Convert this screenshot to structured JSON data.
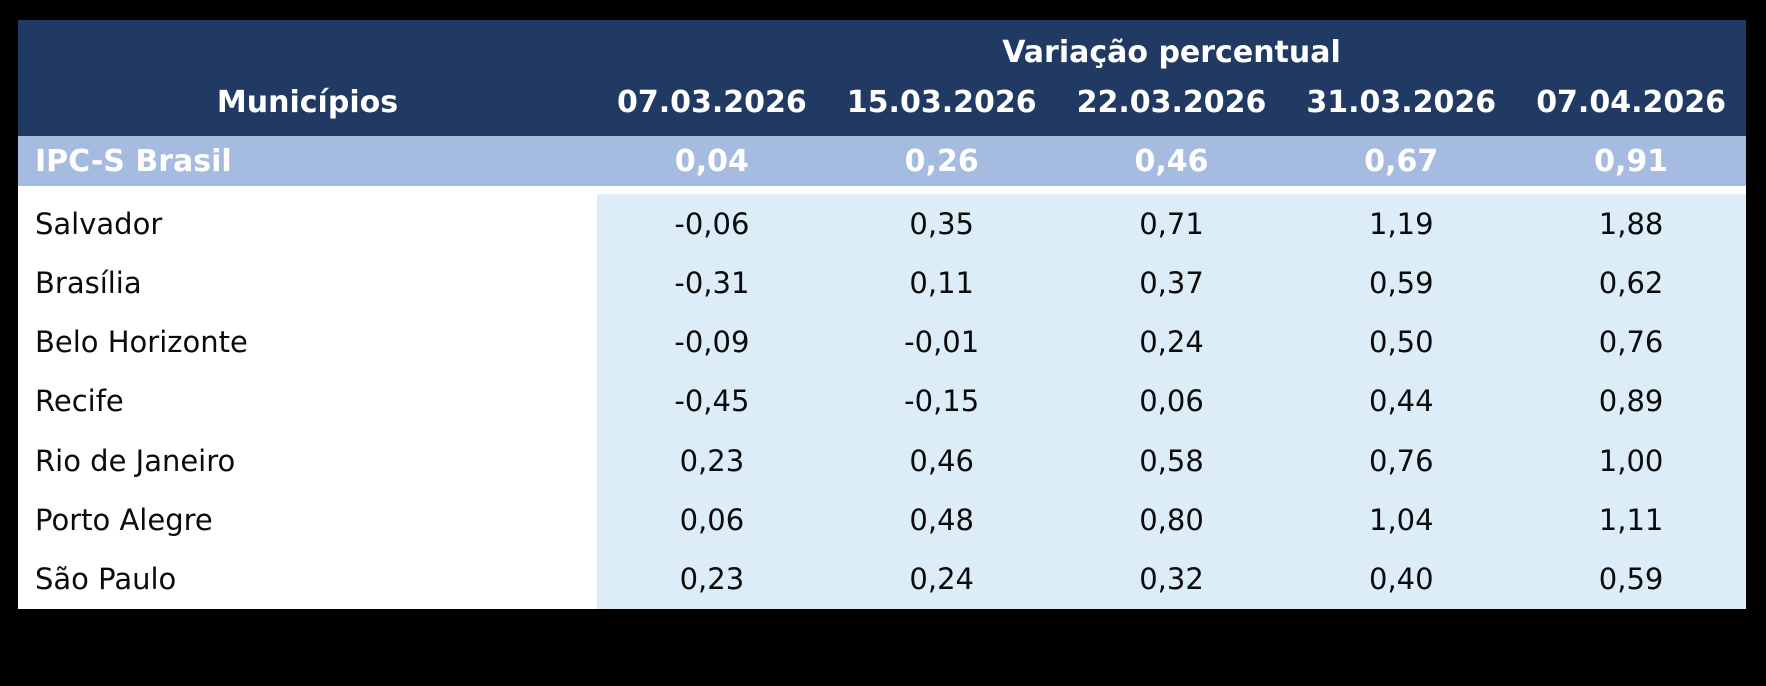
{
  "table": {
    "title": "Variação percentual",
    "columns": [
      "Municípios",
      "07.03.2026",
      "15.03.2026",
      "22.03.2026",
      "31.03.2026",
      "07.04.2026"
    ],
    "highlight_row": {
      "label": "IPC-S Brasil",
      "values": [
        "0,04",
        "0,26",
        "0,46",
        "0,67",
        "0,91"
      ]
    },
    "rows": [
      {
        "label": "Salvador",
        "values": [
          "-0,06",
          "0,35",
          "0,71",
          "1,19",
          "1,88"
        ]
      },
      {
        "label": "Brasília",
        "values": [
          "-0,31",
          "0,11",
          "0,37",
          "0,59",
          "0,62"
        ]
      },
      {
        "label": "Belo Horizonte",
        "values": [
          "-0,09",
          "-0,01",
          "0,24",
          "0,50",
          "0,76"
        ]
      },
      {
        "label": "Recife",
        "values": [
          "-0,45",
          "-0,15",
          "0,06",
          "0,44",
          "0,89"
        ]
      },
      {
        "label": "Rio de Janeiro",
        "values": [
          "0,23",
          "0,46",
          "0,58",
          "0,76",
          "1,00"
        ]
      },
      {
        "label": "Porto Alegre",
        "values": [
          "0,06",
          "0,48",
          "0,80",
          "1,04",
          "1,11"
        ]
      },
      {
        "label": "São Paulo",
        "values": [
          "0,23",
          "0,24",
          "0,32",
          "0,40",
          "0,59"
        ]
      }
    ],
    "colors": {
      "header_bg": "#203A64",
      "highlight_bg": "#A5BBE0",
      "data_bg": "#DDEDF8",
      "label_col_bg": "#FFFFFF",
      "header_text": "#FFFFFF",
      "body_text": "#0B0B0B",
      "page_bg": "#000000"
    }
  },
  "chart_data": {
    "type": "table",
    "title": "Variação percentual",
    "columns": [
      "Municípios",
      "07.03.2026",
      "15.03.2026",
      "22.03.2026",
      "31.03.2026",
      "07.04.2026"
    ],
    "rows": [
      [
        "IPC-S Brasil",
        "0,04",
        "0,26",
        "0,46",
        "0,67",
        "0,91"
      ],
      [
        "Salvador",
        "-0,06",
        "0,35",
        "0,71",
        "1,19",
        "1,88"
      ],
      [
        "Brasília",
        "-0,31",
        "0,11",
        "0,37",
        "0,59",
        "0,62"
      ],
      [
        "Belo Horizonte",
        "-0,09",
        "-0,01",
        "0,24",
        "0,50",
        "0,76"
      ],
      [
        "Recife",
        "-0,45",
        "-0,15",
        "0,06",
        "0,44",
        "0,89"
      ],
      [
        "Rio de Janeiro",
        "0,23",
        "0,46",
        "0,58",
        "0,76",
        "1,00"
      ],
      [
        "Porto Alegre",
        "0,06",
        "0,48",
        "0,80",
        "1,04",
        "1,11"
      ],
      [
        "São Paulo",
        "0,23",
        "0,24",
        "0,32",
        "0,40",
        "0,59"
      ]
    ],
    "layout": {
      "highlighted_row": "IPC-S Brasil",
      "decimal_separator": "comma",
      "first_column_align": "left",
      "value_columns_align": "center"
    }
  }
}
